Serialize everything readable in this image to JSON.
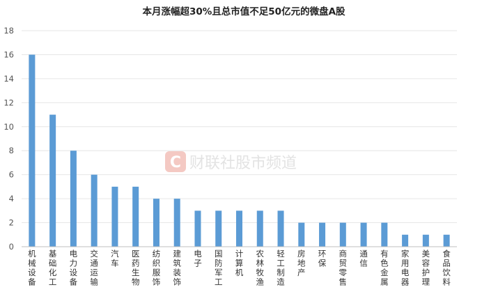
{
  "chart_data": {
    "type": "bar",
    "title": "本月涨幅超30%且总市值不足50亿元的微盘A股",
    "xlabel": "",
    "ylabel": "",
    "ylim": [
      0,
      18
    ],
    "yticks": [
      0,
      2,
      4,
      6,
      8,
      10,
      12,
      14,
      16,
      18
    ],
    "grid": true,
    "bar_color": "#5b9bd5",
    "categories": [
      "机械设备",
      "基础化工",
      "电力设备",
      "交通运输",
      "汽车",
      "医药生物",
      "纺织服饰",
      "建筑装饰",
      "电子",
      "国防军工",
      "计算机",
      "农林牧渔",
      "轻工制造",
      "房地产",
      "环保",
      "商贸零售",
      "通信",
      "有色金属",
      "家用电器",
      "美容护理",
      "食品饮料"
    ],
    "values": [
      16,
      11,
      8,
      6,
      5,
      5,
      4,
      4,
      3,
      3,
      3,
      3,
      3,
      2,
      2,
      2,
      2,
      2,
      1,
      1,
      1
    ]
  },
  "watermark": {
    "logo_letter": "C",
    "text": "财联社股市频道",
    "logo_color": "#f4c9c3"
  }
}
